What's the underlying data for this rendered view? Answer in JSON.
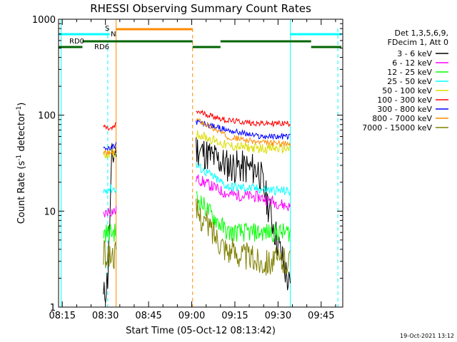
{
  "chart_data": {
    "type": "line",
    "title": "RHESSI Observing Summary Count Rates",
    "xlabel": "Start Time (05-Oct-12 08:13:42)",
    "ylabel_main": "Count Rate (s",
    "ylabel_sup1": "-1",
    "ylabel_mid": " detector",
    "ylabel_sup2": "-1",
    "ylabel_end": ")",
    "yscale": "log",
    "ylim": [
      1,
      1000
    ],
    "xlim_minutes": [
      13.7,
      112.5
    ],
    "x_ticks": [
      {
        "label": "08:15",
        "min": 15
      },
      {
        "label": "08:30",
        "min": 30
      },
      {
        "label": "08:45",
        "min": 45
      },
      {
        "label": "09:00",
        "min": 60
      },
      {
        "label": "09:15",
        "min": 75
      },
      {
        "label": "09:30",
        "min": 90
      },
      {
        "label": "09:45",
        "min": 105
      }
    ],
    "y_ticks": [
      {
        "label": "1",
        "value": 1
      },
      {
        "label": "10",
        "value": 10
      },
      {
        "label": "100",
        "value": 100
      },
      {
        "label": "1000",
        "value": 1000
      }
    ],
    "legend_header": [
      "Det 1,3,5,6,9,",
      "FDecim 1, Att 0"
    ],
    "legend_position": "right",
    "series": [
      {
        "name": "3 - 6 keV",
        "color": "#000000",
        "s1": [
          1.2,
          2.0,
          35,
          45
        ],
        "s2": [
          45,
          30,
          27,
          1.5
        ]
      },
      {
        "name": "6 - 12 keV",
        "color": "#ff00ff",
        "s1": [
          9,
          10,
          10,
          10
        ],
        "s2": [
          22,
          15,
          14,
          11
        ]
      },
      {
        "name": "12 - 25 keV",
        "color": "#00ff00",
        "s1": [
          6,
          6,
          6,
          6
        ],
        "s2": [
          14,
          6,
          6,
          6
        ]
      },
      {
        "name": "25 - 50 keV",
        "color": "#00ffff",
        "s1": [
          16,
          17,
          17,
          17
        ],
        "s2": [
          30,
          18,
          17,
          16
        ]
      },
      {
        "name": "50 - 100 keV",
        "color": "#dddd00",
        "s1": [
          38,
          40,
          40,
          40
        ],
        "s2": [
          65,
          48,
          45,
          45
        ]
      },
      {
        "name": "100 - 300 keV",
        "color": "#ff0000",
        "s1": [
          78,
          72,
          72,
          80
        ],
        "s2": [
          110,
          88,
          82,
          82
        ]
      },
      {
        "name": "300 - 800 keV",
        "color": "#0000ff",
        "s1": [
          48,
          44,
          45,
          50
        ],
        "s2": [
          85,
          70,
          60,
          60
        ]
      },
      {
        "name": "800 - 7000 keV",
        "color": "#ff8c00",
        "s1": [
          42,
          40,
          40,
          42
        ],
        "s2": [
          92,
          60,
          52,
          50
        ]
      },
      {
        "name": "7000 - 15000 keV",
        "color": "#808000",
        "s1": [
          3.5,
          3.5,
          3.5,
          3.5
        ],
        "s2": [
          10,
          4,
          3,
          3
        ]
      }
    ],
    "flags": [
      {
        "label": "S",
        "color": "#ff8c00"
      },
      {
        "label": "N",
        "color": "#00ffff"
      },
      {
        "label": "RD0",
        "color": "#006400"
      },
      {
        "label": "RD6",
        "color": "#006400"
      }
    ]
  },
  "footer": {
    "date": "19-Oct-2021 13:12"
  }
}
